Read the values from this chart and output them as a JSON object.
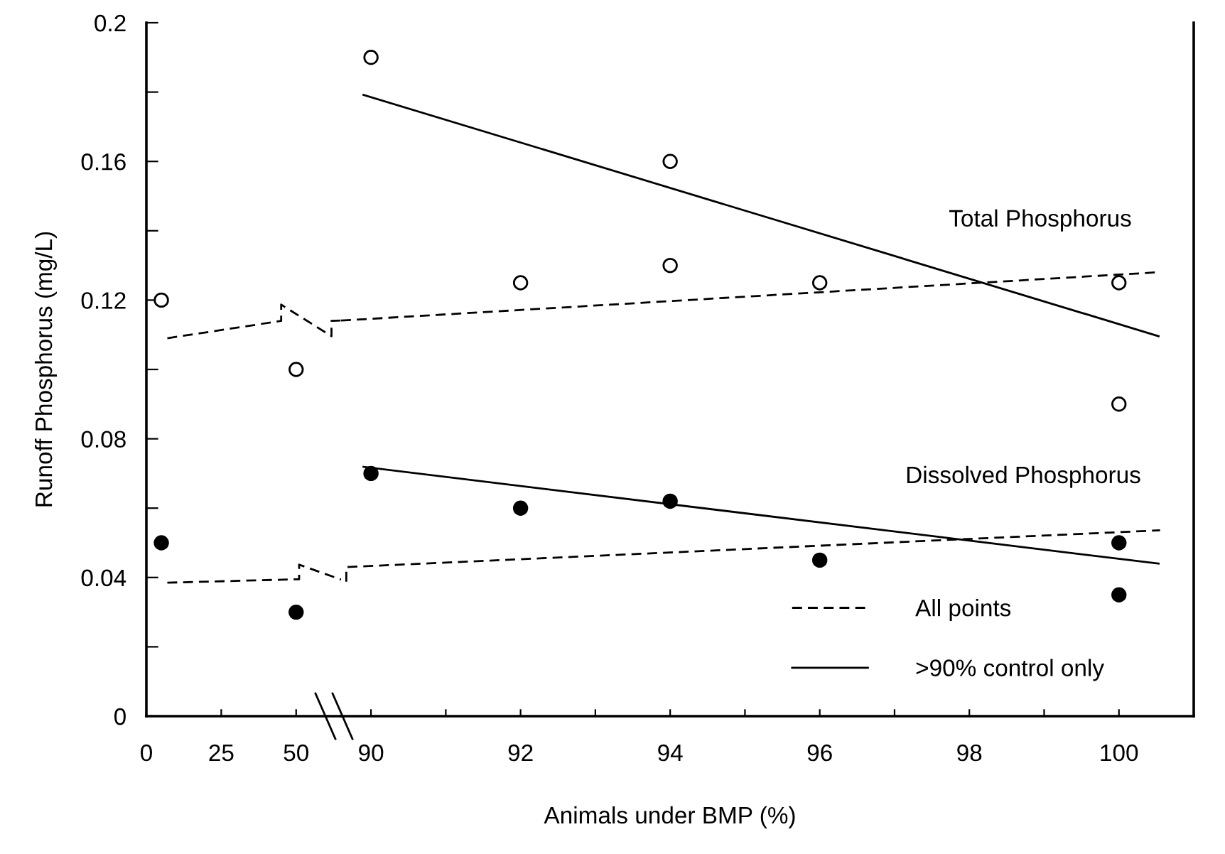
{
  "chart_data": [
    {
      "type": "scatter",
      "ylabel": "Runoff Phosphorus (mg/L)",
      "xlim": [
        0,
        65
      ],
      "xticks": [
        0,
        25,
        50
      ],
      "ylim": [
        0,
        0.2
      ],
      "yticks": [
        0,
        {
          "value": 0.02,
          "label": null
        },
        0.04,
        {
          "value": 0.06,
          "label": null
        },
        0.08,
        {
          "value": 0.1,
          "label": null
        },
        0.12,
        {
          "value": 0.14,
          "label": null
        },
        0.16,
        {
          "value": 0.18,
          "label": null
        },
        0.2
      ],
      "grid": false,
      "series": [
        {
          "marker": "circle",
          "color": "#ffffff",
          "x": [
            5,
            50
          ],
          "values": [
            0.12,
            0.1
          ]
        },
        {
          "marker": "circle",
          "color": "#000000",
          "x": [
            5,
            50
          ],
          "values": [
            0.05,
            0.03
          ]
        },
        {
          "type": "line",
          "line_style": "dashed",
          "color": "#000000",
          "x": [
            7,
            45,
            45,
            61.8,
            61.8,
            65
          ],
          "values": [
            0.109,
            0.114,
            0.1187,
            0.1096,
            0.114,
            0.1141
          ]
        },
        {
          "type": "line",
          "line_style": "dashed",
          "color": "#000000",
          "x": [
            7,
            51,
            51,
            65
          ],
          "values": [
            0.0385,
            0.0395,
            0.0437,
            0.0394
          ]
        }
      ]
    },
    {
      "type": "scatter",
      "xlim": [
        89.6,
        101
      ],
      "xticks": [
        90,
        {
          "value": 91,
          "label": null
        },
        92,
        {
          "value": 93,
          "label": null
        },
        94,
        {
          "value": 95,
          "label": null
        },
        96,
        {
          "value": 97,
          "label": null
        },
        98,
        {
          "value": 99,
          "label": null
        },
        100
      ],
      "ylim": [
        0,
        0.2
      ],
      "tick_labels": "x",
      "grid": false,
      "legend": "bottom right",
      "xlabel": "Animals under BMP (%)",
      "annotations": [
        "Total Phosphorus",
        "Dissolved Phosphorus"
      ],
      "series": [
        {
          "marker": "circle",
          "color": "#ffffff",
          "x": [
            90,
            92,
            94,
            94,
            96,
            100,
            100
          ],
          "values": [
            0.19,
            0.125,
            0.16,
            0.13,
            0.125,
            0.125,
            0.09
          ]
        },
        {
          "marker": "circle",
          "color": "#000000",
          "x": [
            90,
            92,
            94,
            96,
            100,
            100
          ],
          "values": [
            0.07,
            0.06,
            0.062,
            0.045,
            0.05,
            0.035
          ]
        },
        {
          "type": "line",
          "line_style": "dashed",
          "name": "All points",
          "color": "#000000",
          "x": [
            89.6,
            100.5
          ],
          "values": [
            0.1141,
            0.128
          ]
        },
        {
          "type": "line",
          "line_style": "dashed",
          "color": "#000000",
          "x": [
            89.67,
            89.67,
            100.55
          ],
          "values": [
            0.0388,
            0.043,
            0.0536
          ]
        },
        {
          "type": "line",
          "line_style": "solid",
          "name": ">90% control only",
          "color": "#000000",
          "x": [
            89.9,
            100.53
          ],
          "values": [
            0.1792,
            0.1096
          ]
        },
        {
          "type": "line",
          "line_style": "solid",
          "color": "#000000",
          "x": [
            89.9,
            100.53
          ],
          "values": [
            0.0719,
            0.044
          ]
        }
      ]
    }
  ]
}
